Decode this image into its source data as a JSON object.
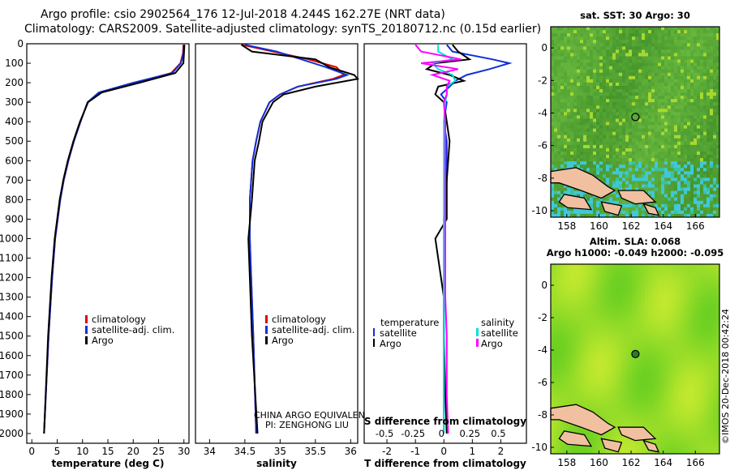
{
  "header": {
    "line1": "Argo profile: csio 2902564_176 12-Jul-2018 4.244S 162.27E (NRT data)",
    "line2": "Climatology: CARS2009. Satellite-adjusted climatology: synTS_20180712.nc (0.15d earlier)"
  },
  "colors": {
    "climatology": "#e00000",
    "satellite": "#1030d8",
    "argo": "#000000",
    "sal_satellite": "#00e0e0",
    "sal_argo": "#ff00ff"
  },
  "chart_data": [
    {
      "type": "line",
      "name": "temperature",
      "xlabel": "temperature (deg C)",
      "xlim": [
        -1,
        31
      ],
      "xticks": [
        0,
        5,
        10,
        15,
        20,
        25,
        30
      ],
      "ylim": [
        2050,
        0
      ],
      "yticks": [
        0,
        100,
        200,
        300,
        400,
        500,
        600,
        700,
        800,
        900,
        1000,
        1100,
        1200,
        1300,
        1400,
        1500,
        1600,
        1700,
        1800,
        1900,
        2000
      ],
      "legend": [
        "climatology",
        "satellite-adj. clim.",
        "Argo"
      ],
      "depth": [
        5,
        50,
        100,
        150,
        200,
        250,
        300,
        400,
        500,
        600,
        700,
        800,
        1000,
        1200,
        1500,
        2000
      ],
      "series": [
        {
          "name": "climatology",
          "color_key": "climatology",
          "values": [
            29.9,
            29.8,
            29.3,
            27.5,
            20.5,
            13.5,
            11.0,
            9.6,
            8.3,
            7.2,
            6.3,
            5.6,
            4.6,
            4.0,
            3.3,
            2.4
          ]
        },
        {
          "name": "satellite-adj. clim.",
          "color_key": "satellite",
          "values": [
            30.0,
            29.9,
            29.4,
            27.7,
            20.0,
            13.2,
            11.0,
            9.6,
            8.3,
            7.2,
            6.3,
            5.6,
            4.6,
            4.0,
            3.3,
            2.4
          ]
        },
        {
          "name": "Argo",
          "color_key": "argo",
          "values": [
            30.1,
            30.0,
            29.9,
            28.3,
            21.2,
            13.8,
            11.1,
            9.5,
            8.2,
            7.1,
            6.2,
            5.5,
            4.5,
            3.9,
            3.2,
            2.4
          ]
        }
      ]
    },
    {
      "type": "line",
      "name": "salinity",
      "xlabel": "salinity",
      "xlim": [
        33.8,
        36.1
      ],
      "xticks": [
        34,
        34.5,
        35,
        35.5,
        36
      ],
      "ylim": [
        2050,
        0
      ],
      "legend": [
        "climatology",
        "satellite-adj. clim.",
        "Argo"
      ],
      "note": [
        "CHINA ARGO EQUIVALENT",
        "PI: ZENGHONG LIU"
      ],
      "depth": [
        5,
        40,
        80,
        120,
        160,
        180,
        220,
        260,
        300,
        400,
        500,
        600,
        800,
        1000,
        1200,
        1500,
        2000
      ],
      "series": [
        {
          "name": "climatology",
          "color_key": "climatology",
          "values": [
            34.45,
            34.9,
            35.4,
            35.8,
            35.9,
            35.75,
            35.25,
            35.0,
            34.85,
            34.72,
            34.66,
            34.61,
            34.57,
            34.57,
            34.59,
            34.62,
            34.66
          ]
        },
        {
          "name": "satellite-adj. clim.",
          "color_key": "satellite",
          "values": [
            34.5,
            34.95,
            35.3,
            35.65,
            35.95,
            35.8,
            35.25,
            35.0,
            34.85,
            34.72,
            34.66,
            34.61,
            34.57,
            34.57,
            34.59,
            34.62,
            34.66
          ]
        },
        {
          "name": "Argo",
          "color_key": "argo",
          "values": [
            34.45,
            34.6,
            35.5,
            35.7,
            36.05,
            36.1,
            35.5,
            35.05,
            34.9,
            34.75,
            34.7,
            34.64,
            34.6,
            34.55,
            34.57,
            34.6,
            34.68
          ]
        }
      ]
    },
    {
      "type": "line",
      "name": "difference from climatology",
      "xlabel": "T difference from climatology",
      "xlabel_top": "S difference from climatology",
      "xlim": [
        -2.8,
        2.9
      ],
      "xticks": [
        -2,
        -1,
        0,
        1,
        2
      ],
      "s_xticks": [
        "-0.5",
        "-0.25",
        "0",
        "0.25",
        "0.5"
      ],
      "ylim": [
        2050,
        0
      ],
      "legend_left": {
        "title": "temperature",
        "items": [
          "satellite",
          "Argo"
        ]
      },
      "legend_right": {
        "title": "salinity",
        "items": [
          "satellite",
          "Argo"
        ]
      },
      "depth": [
        5,
        40,
        80,
        100,
        130,
        160,
        190,
        220,
        260,
        300,
        400,
        500,
        700,
        900,
        1000,
        1100,
        1300,
        1500,
        1800,
        2000
      ],
      "series": [
        {
          "name": "temperature satellite",
          "color_key": "satellite",
          "values": [
            0.1,
            0.3,
            1.7,
            2.3,
            1.6,
            0.8,
            0.4,
            0.2,
            -0.1,
            0.1,
            0.0,
            0.1,
            0.1,
            0.0,
            0.0,
            0.0,
            0.0,
            0.0,
            0.0,
            0.0
          ]
        },
        {
          "name": "temperature Argo",
          "color_key": "argo",
          "values": [
            0.3,
            0.5,
            0.9,
            -0.3,
            -0.6,
            0.2,
            0.7,
            -0.2,
            -0.3,
            0.0,
            0.1,
            0.2,
            0.1,
            0.1,
            -0.3,
            -0.2,
            0.0,
            0.0,
            0.05,
            0.1
          ]
        },
        {
          "name": "salinity satellite",
          "color_key": "sal_satellite",
          "values": [
            -0.2,
            -0.2,
            0.3,
            -0.4,
            -0.2,
            0.3,
            0.4,
            0.1,
            0.1,
            0.05,
            0.0,
            0.0,
            0.0,
            0.0,
            0.0,
            0.0,
            0.0,
            0.0,
            0.0,
            0.0
          ]
        },
        {
          "name": "salinity Argo",
          "color_key": "sal_argo",
          "values": [
            -1.0,
            -0.8,
            0.6,
            -0.8,
            0.5,
            -0.4,
            0.2,
            0.1,
            0.1,
            0.0,
            0.05,
            0.05,
            0.05,
            0.05,
            0.05,
            0.05,
            0.05,
            0.1,
            0.1,
            0.15
          ]
        }
      ]
    },
    {
      "type": "heatmap",
      "name": "satellite SST map",
      "title": "sat. SST: 30 Argo: 30",
      "xticks": [
        "158",
        "160",
        "162",
        "164",
        "166"
      ],
      "yticks": [
        "0",
        "-2",
        "-4",
        "-6",
        "-8",
        "-10"
      ],
      "marker": {
        "lon": 162.27,
        "lat": -4.244
      }
    },
    {
      "type": "heatmap",
      "name": "altimetry SLA map",
      "title1": "Altim. SLA: 0.068",
      "title2": "Argo h1000: -0.049 h2000: -0.095",
      "xticks": [
        "158",
        "160",
        "162",
        "164",
        "166"
      ],
      "yticks": [
        "0",
        "-2",
        "-4",
        "-6",
        "-8",
        "-10"
      ],
      "marker": {
        "lon": 162.27,
        "lat": -4.244
      }
    }
  ],
  "footer": {
    "stamp": "©IMOS 20-Dec-2018 00:42:24"
  }
}
